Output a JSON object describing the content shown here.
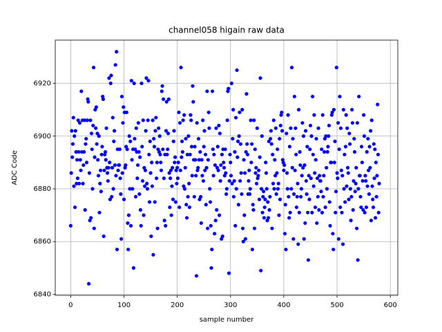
{
  "chart_data": {
    "type": "scatter",
    "title": "channel058 higain raw data",
    "xlabel": "sample number",
    "ylabel": "ADC Code",
    "color": "blue",
    "grid": true,
    "xlim": [
      -29,
      614
    ],
    "ylim": [
      6839.6,
      6936.4
    ],
    "xticks": [
      0,
      100,
      200,
      300,
      400,
      500,
      600
    ],
    "yticks": [
      6840,
      6860,
      6880,
      6900,
      6920
    ],
    "x": [
      0,
      1,
      2,
      3,
      4,
      5,
      6,
      7,
      8,
      9,
      10,
      11,
      12,
      13,
      14,
      15,
      16,
      17,
      18,
      19,
      20,
      21,
      22,
      23,
      24,
      25,
      26,
      27,
      28,
      29,
      30,
      31,
      32,
      33,
      34,
      35,
      36,
      37,
      38,
      39,
      40,
      41,
      42,
      43,
      44,
      45,
      46,
      47,
      48,
      49,
      50,
      51,
      52,
      53,
      54,
      55,
      56,
      57,
      58,
      59,
      60,
      61,
      62,
      63,
      64,
      65,
      66,
      67,
      68,
      69,
      70,
      71,
      72,
      73,
      74,
      75,
      76,
      77,
      78,
      79,
      80,
      81,
      82,
      83,
      84,
      85,
      86,
      87,
      88,
      89,
      90,
      91,
      92,
      93,
      94,
      95,
      96,
      97,
      98,
      99,
      100,
      101,
      102,
      103,
      104,
      105,
      106,
      107,
      108,
      109,
      110,
      111,
      112,
      113,
      114,
      115,
      116,
      117,
      118,
      119,
      120,
      121,
      122,
      123,
      124,
      125,
      126,
      127,
      128,
      129,
      130,
      131,
      132,
      133,
      134,
      135,
      136,
      137,
      138,
      139,
      140,
      141,
      142,
      143,
      144,
      145,
      146,
      147,
      148,
      149,
      150,
      151,
      152,
      153,
      154,
      155,
      156,
      157,
      158,
      159,
      160,
      161,
      162,
      163,
      164,
      165,
      166,
      167,
      168,
      169,
      170,
      171,
      172,
      173,
      174,
      175,
      176,
      177,
      178,
      179,
      180,
      181,
      182,
      183,
      184,
      185,
      186,
      187,
      188,
      189,
      190,
      191,
      192,
      193,
      194,
      195,
      196,
      197,
      198,
      199,
      200,
      201,
      202,
      203,
      204,
      205,
      206,
      207,
      208,
      209,
      210,
      211,
      212,
      213,
      214,
      215,
      216,
      217,
      218,
      219,
      220,
      221,
      222,
      223,
      224,
      225,
      226,
      227,
      228,
      229,
      230,
      231,
      232,
      233,
      234,
      235,
      236,
      237,
      238,
      239,
      240,
      241,
      242,
      243,
      244,
      245,
      246,
      247,
      248,
      249,
      250,
      251,
      252,
      253,
      254,
      255,
      256,
      257,
      258,
      259,
      260,
      261,
      262,
      263,
      264,
      265,
      266,
      267,
      268,
      269,
      270,
      271,
      272,
      273,
      274,
      275,
      276,
      277,
      278,
      279,
      280,
      281,
      282,
      283,
      284,
      285,
      286,
      287,
      288,
      289,
      290,
      291,
      292,
      293,
      294,
      295,
      296,
      297,
      298,
      299,
      300,
      301,
      302,
      303,
      304,
      305,
      306,
      307,
      308,
      309,
      310,
      311,
      312,
      313,
      314,
      315,
      316,
      317,
      318,
      319,
      320,
      321,
      322,
      323,
      324,
      325,
      326,
      327,
      328,
      329,
      330,
      331,
      332,
      333,
      334,
      335,
      336,
      337,
      338,
      339,
      340,
      341,
      342,
      343,
      344,
      345,
      346,
      347,
      348,
      349,
      350,
      351,
      352,
      353,
      354,
      355,
      356,
      357,
      358,
      359,
      360,
      361,
      362,
      363,
      364,
      365,
      366,
      367,
      368,
      369,
      370,
      371,
      372,
      373,
      374,
      375,
      376,
      377,
      378,
      379,
      380,
      381,
      382,
      383,
      384,
      385,
      386,
      387,
      388,
      389,
      390,
      391,
      392,
      393,
      394,
      395,
      396,
      397,
      398,
      399,
      400,
      401,
      402,
      403,
      404,
      405,
      406,
      407,
      408,
      409,
      410,
      411,
      412,
      413,
      414,
      415,
      416,
      417,
      418,
      419,
      420,
      421,
      422,
      423,
      424,
      425,
      426,
      427,
      428,
      429,
      430,
      431,
      432,
      433,
      434,
      435,
      436,
      437,
      438,
      439,
      440,
      441,
      442,
      443,
      444,
      445,
      446,
      447,
      448,
      449,
      450,
      451,
      452,
      453,
      454,
      455,
      456,
      457,
      458,
      459,
      460,
      461,
      462,
      463,
      464,
      465,
      466,
      467,
      468,
      469,
      470,
      471,
      472,
      473,
      474,
      475,
      476,
      477,
      478,
      479,
      480,
      481,
      482,
      483,
      484,
      485,
      486,
      487,
      488,
      489,
      490,
      491,
      492,
      493,
      494,
      495,
      496,
      497,
      498,
      499,
      500,
      501,
      502,
      503,
      504,
      505,
      506,
      507,
      508,
      509,
      510,
      511,
      512,
      513,
      514,
      515,
      516,
      517,
      518,
      519,
      520,
      521,
      522,
      523,
      524,
      525,
      526,
      527,
      528,
      529,
      530,
      531,
      532,
      533,
      534,
      535,
      536,
      537,
      538,
      539,
      540,
      541,
      542,
      543,
      544,
      545,
      546,
      547,
      548,
      549,
      550,
      551,
      552,
      553,
      554,
      555,
      556,
      557,
      558,
      559,
      560,
      561,
      562,
      563,
      564,
      565,
      566,
      567,
      568,
      569,
      570,
      571,
      572,
      573,
      574,
      575,
      576,
      577,
      578,
      579
    ],
    "values": [
      6866,
      6886,
      6902,
      6892,
      6897,
      6907,
      6881,
      6900,
      6873,
      6902,
      6894,
      6882,
      6891,
      6884,
      6906,
      6894,
      6882,
      6905,
      6891,
      6887,
      6917,
      6894,
      6906,
      6882,
      6889,
      6894,
      6906,
      6872,
      6897,
      6899,
      6890,
      6906,
      6914,
      6913,
      6844,
      6886,
      6868,
      6906,
      6869,
      6901,
      6895,
      6880,
      6904,
      6926,
      6865,
      6892,
      6910,
      6903,
      6911,
      6897,
      6901,
      6891,
      6885,
      6900,
      6871,
      6882,
      6887,
      6879,
      6893,
      6896,
      6915,
      6914,
      6862,
      6887,
      6893,
      6894,
      6891,
      6903,
      6888,
      6886,
      6883,
      6888,
      6922,
      6890,
      6876,
      6920,
      6923,
      6877,
      6888,
      6907,
      6880,
      6898,
      6902,
      6889,
      6927,
      6885,
      6932,
      6857,
      6895,
      6887,
      6889,
      6889,
      6895,
      6884,
      6878,
      6861,
      6915,
      6886,
      6905,
      6911,
      6876,
      6909,
      6888,
      6889,
      6896,
      6909,
      6895,
      6867,
      6857,
      6870,
      6900,
      6880,
      6898,
      6866,
      6921,
      6891,
      6880,
      6895,
      6850,
      6920,
      6899,
      6895,
      6877,
      6903,
      6894,
      6884,
      6889,
      6905,
      6894,
      6878,
      6892,
      6872,
      6866,
      6920,
      6896,
      6883,
      6906,
      6870,
      6888,
      6881,
      6887,
      6902,
      6922,
      6882,
      6880,
      6906,
      6921,
      6893,
      6875,
      6898,
      6886,
      6862,
      6890,
      6881,
      6906,
      6855,
      6899,
      6896,
      6875,
      6902,
      6907,
      6884,
      6890,
      6865,
      6895,
      6903,
      6894,
      6900,
      6893,
      6890,
      6887,
      6917,
      6919,
      6895,
      6914,
      6884,
      6868,
      6893,
      6866,
      6902,
      6913,
      6893,
      6895,
      6901,
      6914,
      6886,
      6873,
      6884,
      6887,
      6870,
      6881,
      6888,
      6876,
      6898,
      6902,
      6890,
      6892,
      6875,
      6887,
      6882,
      6888,
      6884,
      6890,
      6909,
      6873,
      6905,
      6887,
      6926,
      6892,
      6898,
      6894,
      6906,
      6881,
      6908,
      6880,
      6888,
      6899,
      6874,
      6869,
      6893,
      6877,
      6900,
      6882,
      6873,
      6893,
      6908,
      6906,
      6896,
      6885,
      6919,
      6913,
      6891,
      6877,
      6896,
      6891,
      6885,
      6847,
      6905,
      6887,
      6888,
      6899,
      6891,
      6876,
      6894,
      6877,
      6867,
      6891,
      6885,
      6906,
      6883,
      6896,
      6902,
      6887,
      6893,
      6874,
      6888,
      6917,
      6865,
      6891,
      6909,
      6903,
      6880,
      6875,
      6866,
      6850,
      6857,
      6917,
      6895,
      6885,
      6893,
      6863,
      6889,
      6868,
      6903,
      6872,
      6888,
      6896,
      6887,
      6904,
      6870,
      6901,
      6883,
      6889,
      6861,
      6893,
      6862,
      6895,
      6890,
      6888,
      6885,
      6895,
      6886,
      6878,
      6880,
      6906,
      6917,
      6918,
      6848,
      6883,
      6893,
      6890,
      6885,
      6920,
      6882,
      6899,
      6910,
      6877,
      6883,
      6894,
      6866,
      6907,
      6880,
      6925,
      6892,
      6898,
      6874,
      6900,
      6909,
      6883,
      6897,
      6886,
      6878,
      6910,
      6865,
      6860,
      6891,
      6870,
      6886,
      6861,
      6894,
      6916,
      6897,
      6893,
      6878,
      6883,
      6887,
      6878,
      6880,
      6906,
      6890,
      6897,
      6857,
      6874,
      6872,
      6906,
      6865,
      6895,
      6886,
      6888,
      6882,
      6903,
      6884,
      6885,
      6887,
      6876,
      6892,
      6922,
      6849,
      6880,
      6900,
      6871,
      6877,
      6879,
      6869,
      6873,
      6876,
      6890,
      6886,
      6880,
      6868,
      6875,
      6869,
      6898,
      6872,
      6877,
      6899,
      6902,
      6897,
      6865,
      6893,
      6882,
      6906,
      6880,
      6891,
      6885,
      6903,
      6878,
      6886,
      6895,
      6880,
      6882,
      6870,
      6899,
      6876,
      6904,
      6908,
      6909,
      6902,
      6891,
      6890,
      6887,
      6889,
      6863,
      6874,
      6857,
      6901,
      6886,
      6880,
      6908,
      6877,
      6869,
      6896,
      6871,
      6903,
      6880,
      6926,
      6888,
      6899,
      6861,
      6878,
      6915,
      6887,
      6903,
      6893,
      6873,
      6877,
      6882,
      6859,
      6910,
      6871,
      6894,
      6889,
      6877,
      6880,
      6885,
      6905,
      6888,
      6900,
      6861,
      6889,
      6867,
      6902,
      6883,
      6878,
      6896,
      6871,
      6853,
      6885,
      6876,
      6895,
      6904,
      6884,
      6900,
      6871,
      6915,
      6893,
      6881,
      6908,
      6886,
      6873,
      6891,
      6899,
      6867,
      6884,
      6877,
      6903,
      6872,
      6885,
      6883,
      6883,
      6879,
      6895,
      6871,
      6908,
      6877,
      6885,
      6894,
      6899,
      6873,
      6900,
      6888,
      6880,
      6894,
      6896,
      6900,
      6904,
      6875,
      6866,
      6890,
      6890,
      6908,
      6909,
      6863,
      6857,
      6910,
      6890,
      6898,
      6871,
      6879,
      6926,
      6886,
      6884,
      6905,
      6861,
      6895,
      6915,
      6873,
      6903,
      6887,
      6871,
      6885,
      6859,
      6910,
      6880,
      6893,
      6875,
      6896,
      6908,
      6881,
      6903,
      6888,
      6886,
      6876,
      6901,
      6897,
      6880,
      6868,
      6877,
      6910,
      6905,
      6872,
      6883,
      6899,
      6894,
      6879,
      6882,
      6888,
      6865,
      6905,
      6853,
      6880,
      6915,
      6885,
      6885,
      6877,
      6873,
      6896,
      6890,
      6883,
      6872,
      6908,
      6900,
      6871,
      6885,
      6883,
      6873,
      6894,
      6881,
      6899,
      6887,
      6878,
      6896,
      6888,
      6902,
      6868,
      6906,
      6881,
      6876,
      6873,
      6897,
      6884,
      6895,
      6869,
      6890,
      6877,
      6885,
      6912,
      6893,
      6871,
      6882
    ]
  }
}
